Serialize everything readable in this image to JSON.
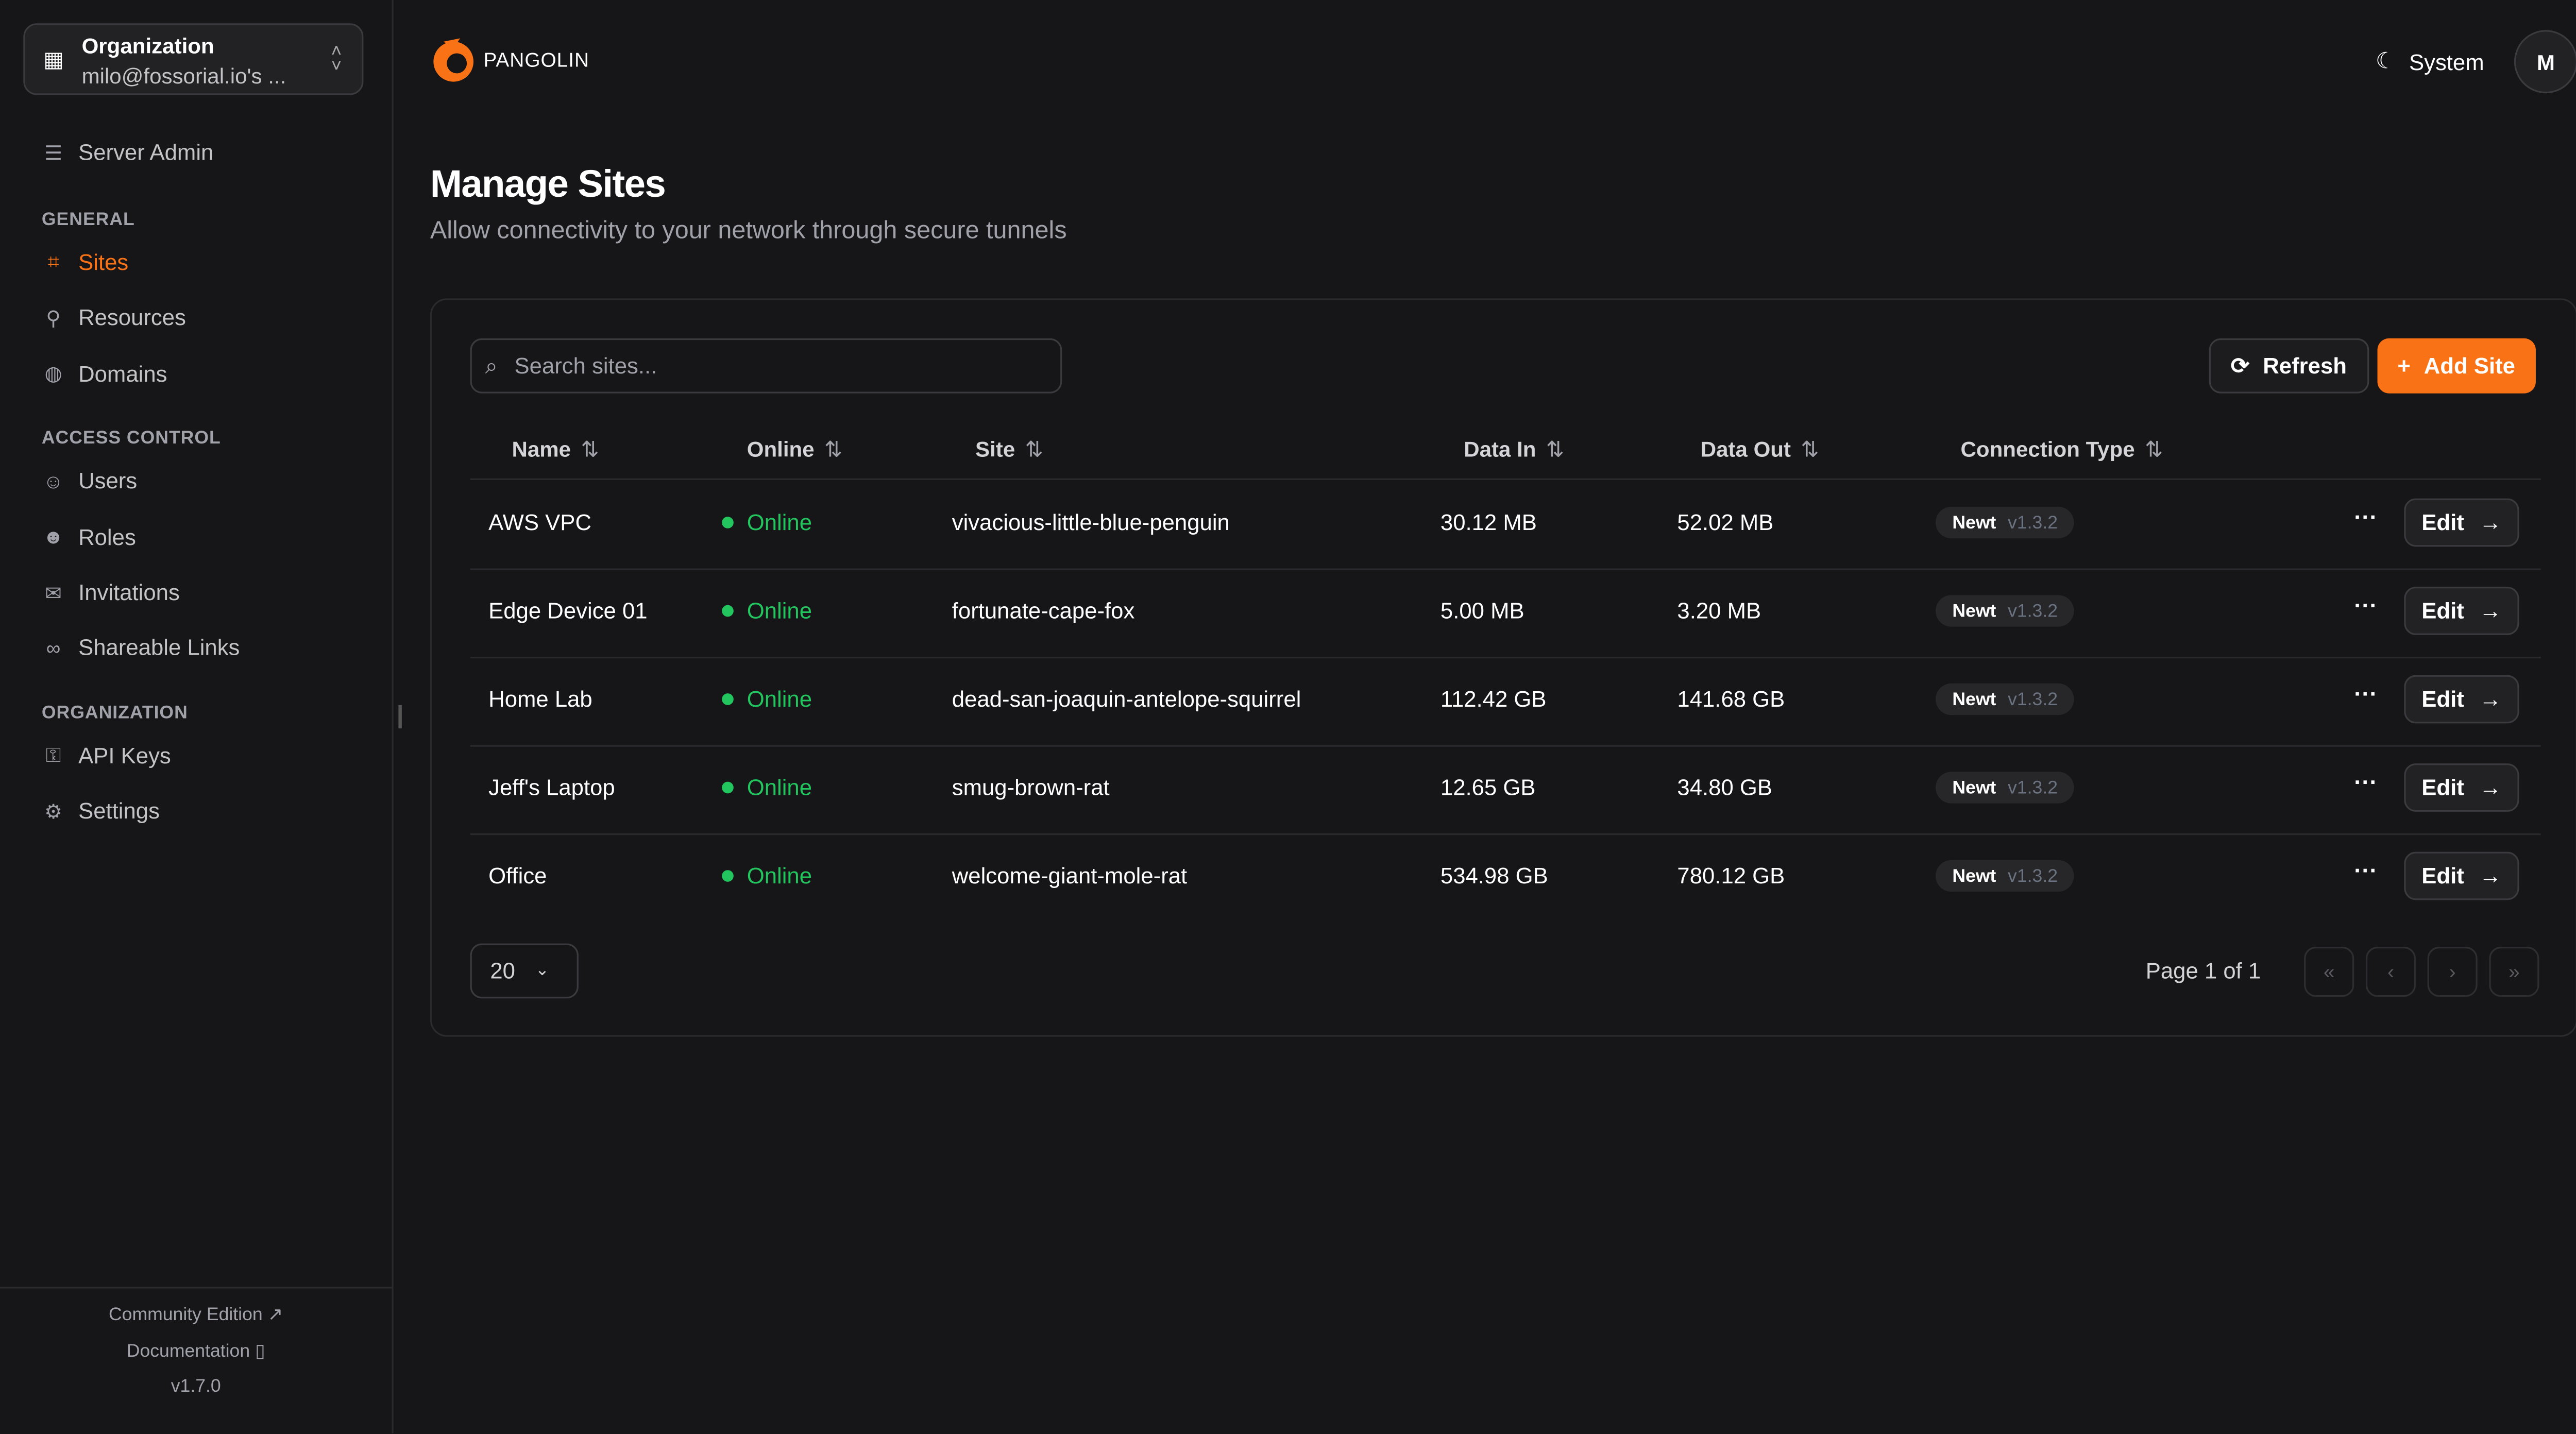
{
  "brand": {
    "name": "PANGOLIN",
    "accent": "#f97316"
  },
  "org": {
    "label": "Organization",
    "name": "milo@fossorial.io's ..."
  },
  "sidebar": {
    "server_admin": "Server Admin",
    "sections": [
      {
        "title": "GENERAL",
        "items": [
          {
            "label": "Sites",
            "icon": "sites-icon",
            "active": true
          },
          {
            "label": "Resources",
            "icon": "resources-icon"
          },
          {
            "label": "Domains",
            "icon": "globe-icon"
          }
        ]
      },
      {
        "title": "ACCESS CONTROL",
        "items": [
          {
            "label": "Users",
            "icon": "user-icon"
          },
          {
            "label": "Roles",
            "icon": "users-icon"
          },
          {
            "label": "Invitations",
            "icon": "mail-icon"
          },
          {
            "label": "Shareable Links",
            "icon": "link-icon"
          }
        ]
      },
      {
        "title": "ORGANIZATION",
        "items": [
          {
            "label": "API Keys",
            "icon": "key-icon"
          },
          {
            "label": "Settings",
            "icon": "gear-icon"
          }
        ]
      }
    ],
    "footer": {
      "community": "Community Edition",
      "docs": "Documentation",
      "version": "v1.7.0"
    }
  },
  "header": {
    "theme": "System",
    "avatar": "M"
  },
  "page": {
    "title": "Manage Sites",
    "subtitle": "Allow connectivity to your network through secure tunnels"
  },
  "toolbar": {
    "search_placeholder": "Search sites...",
    "refresh": "Refresh",
    "add": "Add Site"
  },
  "table": {
    "columns": [
      "Name",
      "Online",
      "Site",
      "Data In",
      "Data Out",
      "Connection Type"
    ],
    "rows": [
      {
        "name": "AWS VPC",
        "online": "Online",
        "site": "vivacious-little-blue-penguin",
        "in": "30.12 MB",
        "out": "52.02 MB",
        "type": "Newt",
        "ver": "v1.3.2",
        "edit": "Edit"
      },
      {
        "name": "Edge Device 01",
        "online": "Online",
        "site": "fortunate-cape-fox",
        "in": "5.00 MB",
        "out": "3.20 MB",
        "type": "Newt",
        "ver": "v1.3.2",
        "edit": "Edit"
      },
      {
        "name": "Home Lab",
        "online": "Online",
        "site": "dead-san-joaquin-antelope-squirrel",
        "in": "112.42 GB",
        "out": "141.68 GB",
        "type": "Newt",
        "ver": "v1.3.2",
        "edit": "Edit"
      },
      {
        "name": "Jeff's Laptop",
        "online": "Online",
        "site": "smug-brown-rat",
        "in": "12.65 GB",
        "out": "34.80 GB",
        "type": "Newt",
        "ver": "v1.3.2",
        "edit": "Edit"
      },
      {
        "name": "Office",
        "online": "Online",
        "site": "welcome-giant-mole-rat",
        "in": "534.98 GB",
        "out": "780.12 GB",
        "type": "Newt",
        "ver": "v1.3.2",
        "edit": "Edit"
      }
    ]
  },
  "pagination": {
    "page_size": "20",
    "info": "Page 1 of 1"
  }
}
